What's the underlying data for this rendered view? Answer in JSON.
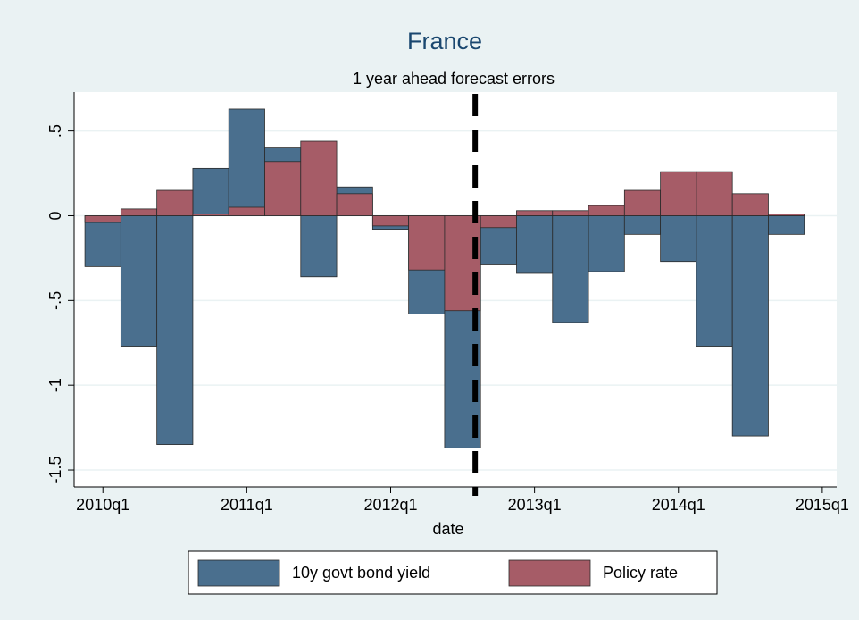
{
  "chart_data": {
    "type": "bar",
    "title": "France",
    "subtitle": "1 year ahead forecast errors",
    "x_label": "date",
    "x": [
      200,
      201,
      202,
      203,
      204,
      205,
      206,
      207,
      208,
      209,
      210,
      211,
      212,
      213,
      214,
      215,
      216,
      217,
      218,
      219
    ],
    "series": [
      {
        "name": "10y govt bond yield",
        "color": "#4a6f8e",
        "values": [
          -0.3,
          -0.77,
          -1.35,
          0.28,
          0.63,
          0.4,
          -0.36,
          0.17,
          -0.08,
          -0.58,
          -1.37,
          -0.29,
          -0.34,
          -0.63,
          -0.33,
          -0.11,
          -0.27,
          -0.77,
          -1.3,
          -0.11
        ]
      },
      {
        "name": "Policy rate",
        "color": "#a65c67",
        "values": [
          -0.04,
          0.04,
          0.15,
          0.01,
          0.05,
          0.32,
          0.44,
          0.13,
          -0.06,
          -0.32,
          -0.56,
          -0.07,
          0.03,
          0.03,
          0.06,
          0.15,
          0.26,
          0.26,
          0.13,
          0.01
        ]
      }
    ],
    "xlim": [
      199.2,
      220.4
    ],
    "xticks": [
      {
        "value": 200,
        "label": "2010q1"
      },
      {
        "value": 204,
        "label": "2011q1"
      },
      {
        "value": 208,
        "label": "2012q1"
      },
      {
        "value": 212,
        "label": "2013q1"
      },
      {
        "value": 216,
        "label": "2014q1"
      },
      {
        "value": 220,
        "label": "2015q1"
      }
    ],
    "ylim": [
      -1.6,
      0.73
    ],
    "yticks": [
      {
        "value": -1.5,
        "label": "-1.5"
      },
      -1,
      {
        "value": -0.5,
        "label": "-.5"
      },
      0,
      {
        "value": 0.5,
        "label": ".5"
      }
    ],
    "grid": true,
    "vline": 210.35,
    "legend": "bottom"
  }
}
